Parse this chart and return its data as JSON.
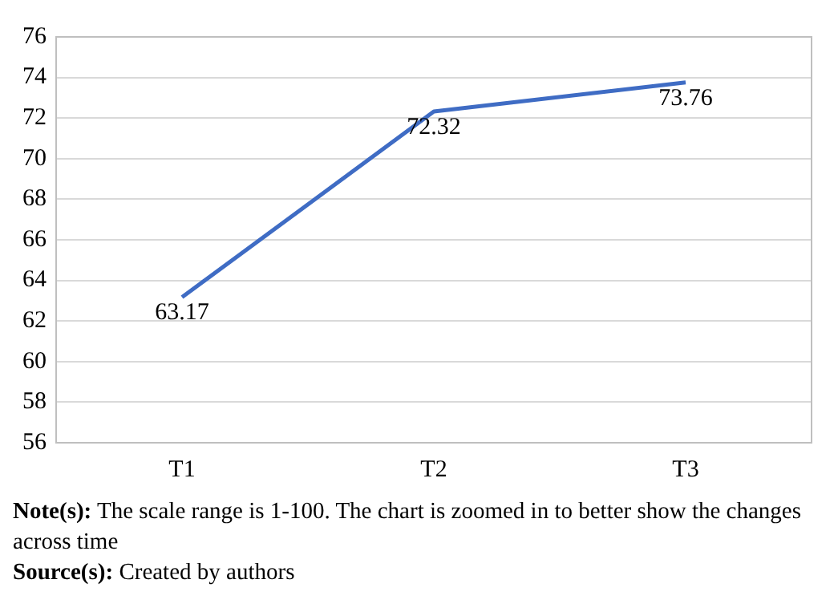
{
  "chart_data": {
    "type": "line",
    "categories": [
      "T1",
      "T2",
      "T3"
    ],
    "series": [
      {
        "color": "#3f6cc4",
        "values": [
          63.17,
          72.32,
          73.76
        ]
      }
    ],
    "ylim": [
      56,
      76
    ],
    "yticks": [
      56,
      58,
      60,
      62,
      64,
      66,
      68,
      70,
      72,
      74,
      76
    ],
    "grid": "y",
    "legend": false,
    "marker": "none",
    "line_style": "solid",
    "data_labels": true,
    "annotations": [
      "Note(s): The scale range is 1-100. The chart is zoomed in to better show the changes across time",
      "Source(s): Created by authors"
    ]
  }
}
